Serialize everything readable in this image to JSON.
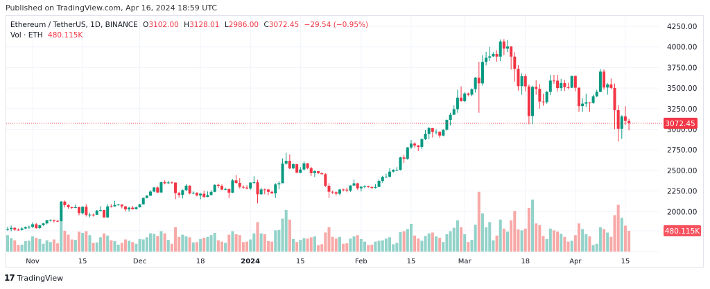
{
  "header": {
    "published": "Published on TradingView.com, Apr 16, 2024 18:59 UTC"
  },
  "legend": {
    "symbol": "Ethereum / TetherUS, 1D, BINANCE",
    "open_prefix": "O",
    "open": "3102.00",
    "high_prefix": "H",
    "high": "3128.01",
    "low_prefix": "L",
    "low": "2986.00",
    "close_prefix": "C",
    "close": "3072.45",
    "change": "−29.54 (−0.95%)",
    "vol_label": "Vol · ETH",
    "vol_value": "480.115K"
  },
  "footer": {
    "brand": "TradingView",
    "logo_icon": "tradingview-logo-icon"
  },
  "colors": {
    "up": "#089981",
    "down": "#f23645",
    "vol_up": "#92d2c9",
    "vol_down": "#f7a9a7",
    "grid": "#f0f3fa"
  },
  "chart_data": {
    "type": "candlestick",
    "interval": "1D",
    "first_open": 1785,
    "last_price_label": "3072.45",
    "last_volume_label": "480.115K",
    "y_ticks": [
      "4250.00",
      "4000.00",
      "3750.00",
      "3500.00",
      "3250.00",
      "3000.00",
      "2750.00",
      "2500.00",
      "2250.00",
      "2000.00"
    ],
    "x_ticks": [
      {
        "label": "Nov",
        "date": "2023-11-01"
      },
      {
        "label": "15",
        "date": "2023-11-15"
      },
      {
        "label": "Dec",
        "date": "2023-12-01"
      },
      {
        "label": "18",
        "date": "2023-12-18"
      },
      {
        "label": "2024",
        "date": "2024-01-01",
        "bold": true
      },
      {
        "label": "15",
        "date": "2024-01-15"
      },
      {
        "label": "Feb",
        "date": "2024-02-01"
      },
      {
        "label": "15",
        "date": "2024-02-15"
      },
      {
        "label": "Mar",
        "date": "2024-03-01"
      },
      {
        "label": "18",
        "date": "2024-03-18"
      },
      {
        "label": "Apr",
        "date": "2024-04-01"
      },
      {
        "label": "15",
        "date": "2024-04-15"
      }
    ],
    "candle_fields": [
      "high",
      "low",
      "close",
      "volume_k"
    ],
    "candles": [
      [
        1815,
        1765,
        1787,
        380
      ],
      [
        1830,
        1760,
        1803,
        310
      ],
      [
        1810,
        1765,
        1780,
        260
      ],
      [
        1795,
        1768,
        1777,
        150
      ],
      [
        1810,
        1770,
        1795,
        160
      ],
      [
        1820,
        1785,
        1810,
        240
      ],
      [
        1830,
        1790,
        1815,
        250
      ],
      [
        1868,
        1800,
        1846,
        350
      ],
      [
        1860,
        1790,
        1800,
        320
      ],
      [
        1840,
        1790,
        1834,
        290
      ],
      [
        1862,
        1828,
        1857,
        180
      ],
      [
        1900,
        1845,
        1894,
        260
      ],
      [
        1905,
        1880,
        1899,
        220
      ],
      [
        1900,
        1865,
        1887,
        280
      ],
      [
        1900,
        1875,
        1885,
        190
      ],
      [
        2130,
        1880,
        2122,
        720
      ],
      [
        2135,
        2050,
        2078,
        480
      ],
      [
        2090,
        2035,
        2053,
        390
      ],
      [
        2060,
        2030,
        2045,
        280
      ],
      [
        2085,
        2040,
        2054,
        270
      ],
      [
        2060,
        1955,
        1981,
        460
      ],
      [
        2065,
        1965,
        2058,
        430
      ],
      [
        2090,
        1940,
        1960,
        470
      ],
      [
        1985,
        1930,
        1963,
        380
      ],
      [
        1975,
        1940,
        1962,
        200
      ],
      [
        2020,
        1960,
        2012,
        210
      ],
      [
        2065,
        2000,
        2019,
        330
      ],
      [
        2020,
        1925,
        1929,
        420
      ],
      [
        2090,
        1925,
        2063,
        370
      ],
      [
        2090,
        2050,
        2062,
        260
      ],
      [
        2130,
        2060,
        2081,
        240
      ],
      [
        2095,
        2075,
        2085,
        160
      ],
      [
        2090,
        2040,
        2063,
        200
      ],
      [
        2070,
        2000,
        2027,
        280
      ],
      [
        2060,
        2000,
        2048,
        250
      ],
      [
        2070,
        2025,
        2028,
        220
      ],
      [
        2060,
        2025,
        2052,
        180
      ],
      [
        2095,
        2050,
        2087,
        290
      ],
      [
        2170,
        2085,
        2166,
        280
      ],
      [
        2200,
        2160,
        2193,
        330
      ],
      [
        2260,
        2190,
        2243,
        420
      ],
      [
        2300,
        2235,
        2293,
        410
      ],
      [
        2305,
        2225,
        2232,
        360
      ],
      [
        2365,
        2230,
        2358,
        470
      ],
      [
        2380,
        2330,
        2344,
        420
      ],
      [
        2375,
        2335,
        2353,
        270
      ],
      [
        2365,
        2340,
        2352,
        180
      ],
      [
        2355,
        2150,
        2225,
        560
      ],
      [
        2240,
        2170,
        2203,
        340
      ],
      [
        2270,
        2160,
        2260,
        390
      ],
      [
        2335,
        2250,
        2315,
        350
      ],
      [
        2320,
        2210,
        2220,
        330
      ],
      [
        2245,
        2210,
        2229,
        210
      ],
      [
        2235,
        2185,
        2196,
        220
      ],
      [
        2225,
        2150,
        2217,
        290
      ],
      [
        2255,
        2165,
        2178,
        320
      ],
      [
        2245,
        2175,
        2201,
        340
      ],
      [
        2260,
        2195,
        2240,
        380
      ],
      [
        2330,
        2235,
        2325,
        430
      ],
      [
        2340,
        2290,
        2313,
        260
      ],
      [
        2330,
        2260,
        2267,
        230
      ],
      [
        2290,
        2260,
        2274,
        200
      ],
      [
        2280,
        2165,
        2230,
        390
      ],
      [
        2395,
        2225,
        2379,
        470
      ],
      [
        2445,
        2340,
        2347,
        400
      ],
      [
        2405,
        2280,
        2300,
        380
      ],
      [
        2320,
        2275,
        2292,
        220
      ],
      [
        2320,
        2270,
        2281,
        230
      ],
      [
        2355,
        2265,
        2352,
        280
      ],
      [
        2430,
        2340,
        2355,
        420
      ],
      [
        2385,
        2100,
        2210,
        680
      ],
      [
        2290,
        2205,
        2269,
        420
      ],
      [
        2280,
        2210,
        2268,
        400
      ],
      [
        2275,
        2200,
        2240,
        240
      ],
      [
        2255,
        2215,
        2221,
        230
      ],
      [
        2345,
        2165,
        2330,
        490
      ],
      [
        2370,
        2270,
        2344,
        500
      ],
      [
        2645,
        2345,
        2583,
        760
      ],
      [
        2715,
        2570,
        2616,
        960
      ],
      [
        2695,
        2515,
        2525,
        740
      ],
      [
        2585,
        2515,
        2576,
        290
      ],
      [
        2580,
        2470,
        2472,
        220
      ],
      [
        2540,
        2465,
        2511,
        270
      ],
      [
        2610,
        2500,
        2586,
        310
      ],
      [
        2590,
        2515,
        2528,
        300
      ],
      [
        2545,
        2430,
        2467,
        330
      ],
      [
        2500,
        2420,
        2491,
        350
      ],
      [
        2475,
        2455,
        2467,
        150
      ],
      [
        2475,
        2450,
        2454,
        170
      ],
      [
        2465,
        2300,
        2314,
        440
      ],
      [
        2345,
        2165,
        2241,
        560
      ],
      [
        2255,
        2215,
        2235,
        340
      ],
      [
        2245,
        2195,
        2217,
        300
      ],
      [
        2275,
        2200,
        2268,
        340
      ],
      [
        2280,
        2245,
        2266,
        180
      ],
      [
        2290,
        2235,
        2256,
        190
      ],
      [
        2320,
        2240,
        2317,
        300
      ],
      [
        2390,
        2310,
        2343,
        350
      ],
      [
        2350,
        2265,
        2282,
        380
      ],
      [
        2305,
        2245,
        2303,
        290
      ],
      [
        2320,
        2285,
        2308,
        230
      ],
      [
        2315,
        2290,
        2297,
        150
      ],
      [
        2310,
        2270,
        2289,
        160
      ],
      [
        2335,
        2280,
        2300,
        230
      ],
      [
        2390,
        2295,
        2373,
        250
      ],
      [
        2435,
        2350,
        2422,
        260
      ],
      [
        2460,
        2410,
        2424,
        300
      ],
      [
        2530,
        2415,
        2485,
        330
      ],
      [
        2515,
        2475,
        2506,
        170
      ],
      [
        2540,
        2490,
        2508,
        200
      ],
      [
        2665,
        2500,
        2658,
        450
      ],
      [
        2690,
        2590,
        2642,
        470
      ],
      [
        2785,
        2630,
        2779,
        520
      ],
      [
        2870,
        2760,
        2826,
        640
      ],
      [
        2840,
        2775,
        2803,
        370
      ],
      [
        2810,
        2735,
        2785,
        300
      ],
      [
        2890,
        2760,
        2880,
        250
      ],
      [
        2990,
        2870,
        2945,
        360
      ],
      [
        3030,
        2880,
        3014,
        420
      ],
      [
        3015,
        2900,
        2968,
        440
      ],
      [
        3000,
        2935,
        2969,
        350
      ],
      [
        2975,
        2895,
        2923,
        320
      ],
      [
        3000,
        2915,
        2993,
        220
      ],
      [
        3120,
        2985,
        3113,
        400
      ],
      [
        3200,
        3045,
        3176,
        470
      ],
      [
        3290,
        3175,
        3244,
        550
      ],
      [
        3480,
        3200,
        3384,
        720
      ],
      [
        3520,
        3335,
        3341,
        560
      ],
      [
        3450,
        3330,
        3434,
        400
      ],
      [
        3445,
        3400,
        3420,
        220
      ],
      [
        3495,
        3400,
        3488,
        270
      ],
      [
        3635,
        3445,
        3627,
        620
      ],
      [
        3820,
        3200,
        3557,
        1380
      ],
      [
        3900,
        3530,
        3818,
        880
      ],
      [
        3940,
        3775,
        3869,
        560
      ],
      [
        4000,
        3830,
        3885,
        680
      ],
      [
        3935,
        3880,
        3913,
        260
      ],
      [
        3960,
        3820,
        3882,
        370
      ],
      [
        4090,
        3830,
        4066,
        740
      ],
      [
        4095,
        3900,
        3980,
        530
      ],
      [
        4085,
        3935,
        4005,
        460
      ],
      [
        4010,
        3725,
        3882,
        720
      ],
      [
        3935,
        3580,
        3733,
        940
      ],
      [
        3780,
        3470,
        3524,
        510
      ],
      [
        3680,
        3420,
        3644,
        490
      ],
      [
        3670,
        3460,
        3520,
        530
      ],
      [
        3545,
        3060,
        3161,
        1010
      ],
      [
        3530,
        3060,
        3515,
        1200
      ],
      [
        3595,
        3420,
        3492,
        650
      ],
      [
        3550,
        3250,
        3336,
        610
      ],
      [
        3430,
        3285,
        3329,
        360
      ],
      [
        3465,
        3310,
        3454,
        290
      ],
      [
        3660,
        3415,
        3591,
        530
      ],
      [
        3660,
        3550,
        3590,
        490
      ],
      [
        3660,
        3460,
        3500,
        460
      ],
      [
        3610,
        3465,
        3561,
        410
      ],
      [
        3600,
        3465,
        3510,
        340
      ],
      [
        3565,
        3485,
        3505,
        230
      ],
      [
        3650,
        3500,
        3648,
        250
      ],
      [
        3650,
        3460,
        3504,
        380
      ],
      [
        3510,
        3210,
        3281,
        650
      ],
      [
        3375,
        3210,
        3311,
        520
      ],
      [
        3430,
        3270,
        3328,
        400
      ],
      [
        3330,
        3210,
        3319,
        350
      ],
      [
        3420,
        3310,
        3399,
        150
      ],
      [
        3480,
        3390,
        3454,
        180
      ],
      [
        3730,
        3450,
        3700,
        560
      ],
      [
        3725,
        3480,
        3507,
        520
      ],
      [
        3560,
        3420,
        3545,
        440
      ],
      [
        3615,
        3485,
        3502,
        340
      ],
      [
        3555,
        3000,
        3232,
        840
      ],
      [
        3290,
        2850,
        3006,
        1080
      ],
      [
        3170,
        2885,
        3156,
        780
      ],
      [
        3280,
        3050,
        3101,
        600
      ],
      [
        3128.01,
        2986,
        3072.45,
        480.115
      ]
    ]
  }
}
